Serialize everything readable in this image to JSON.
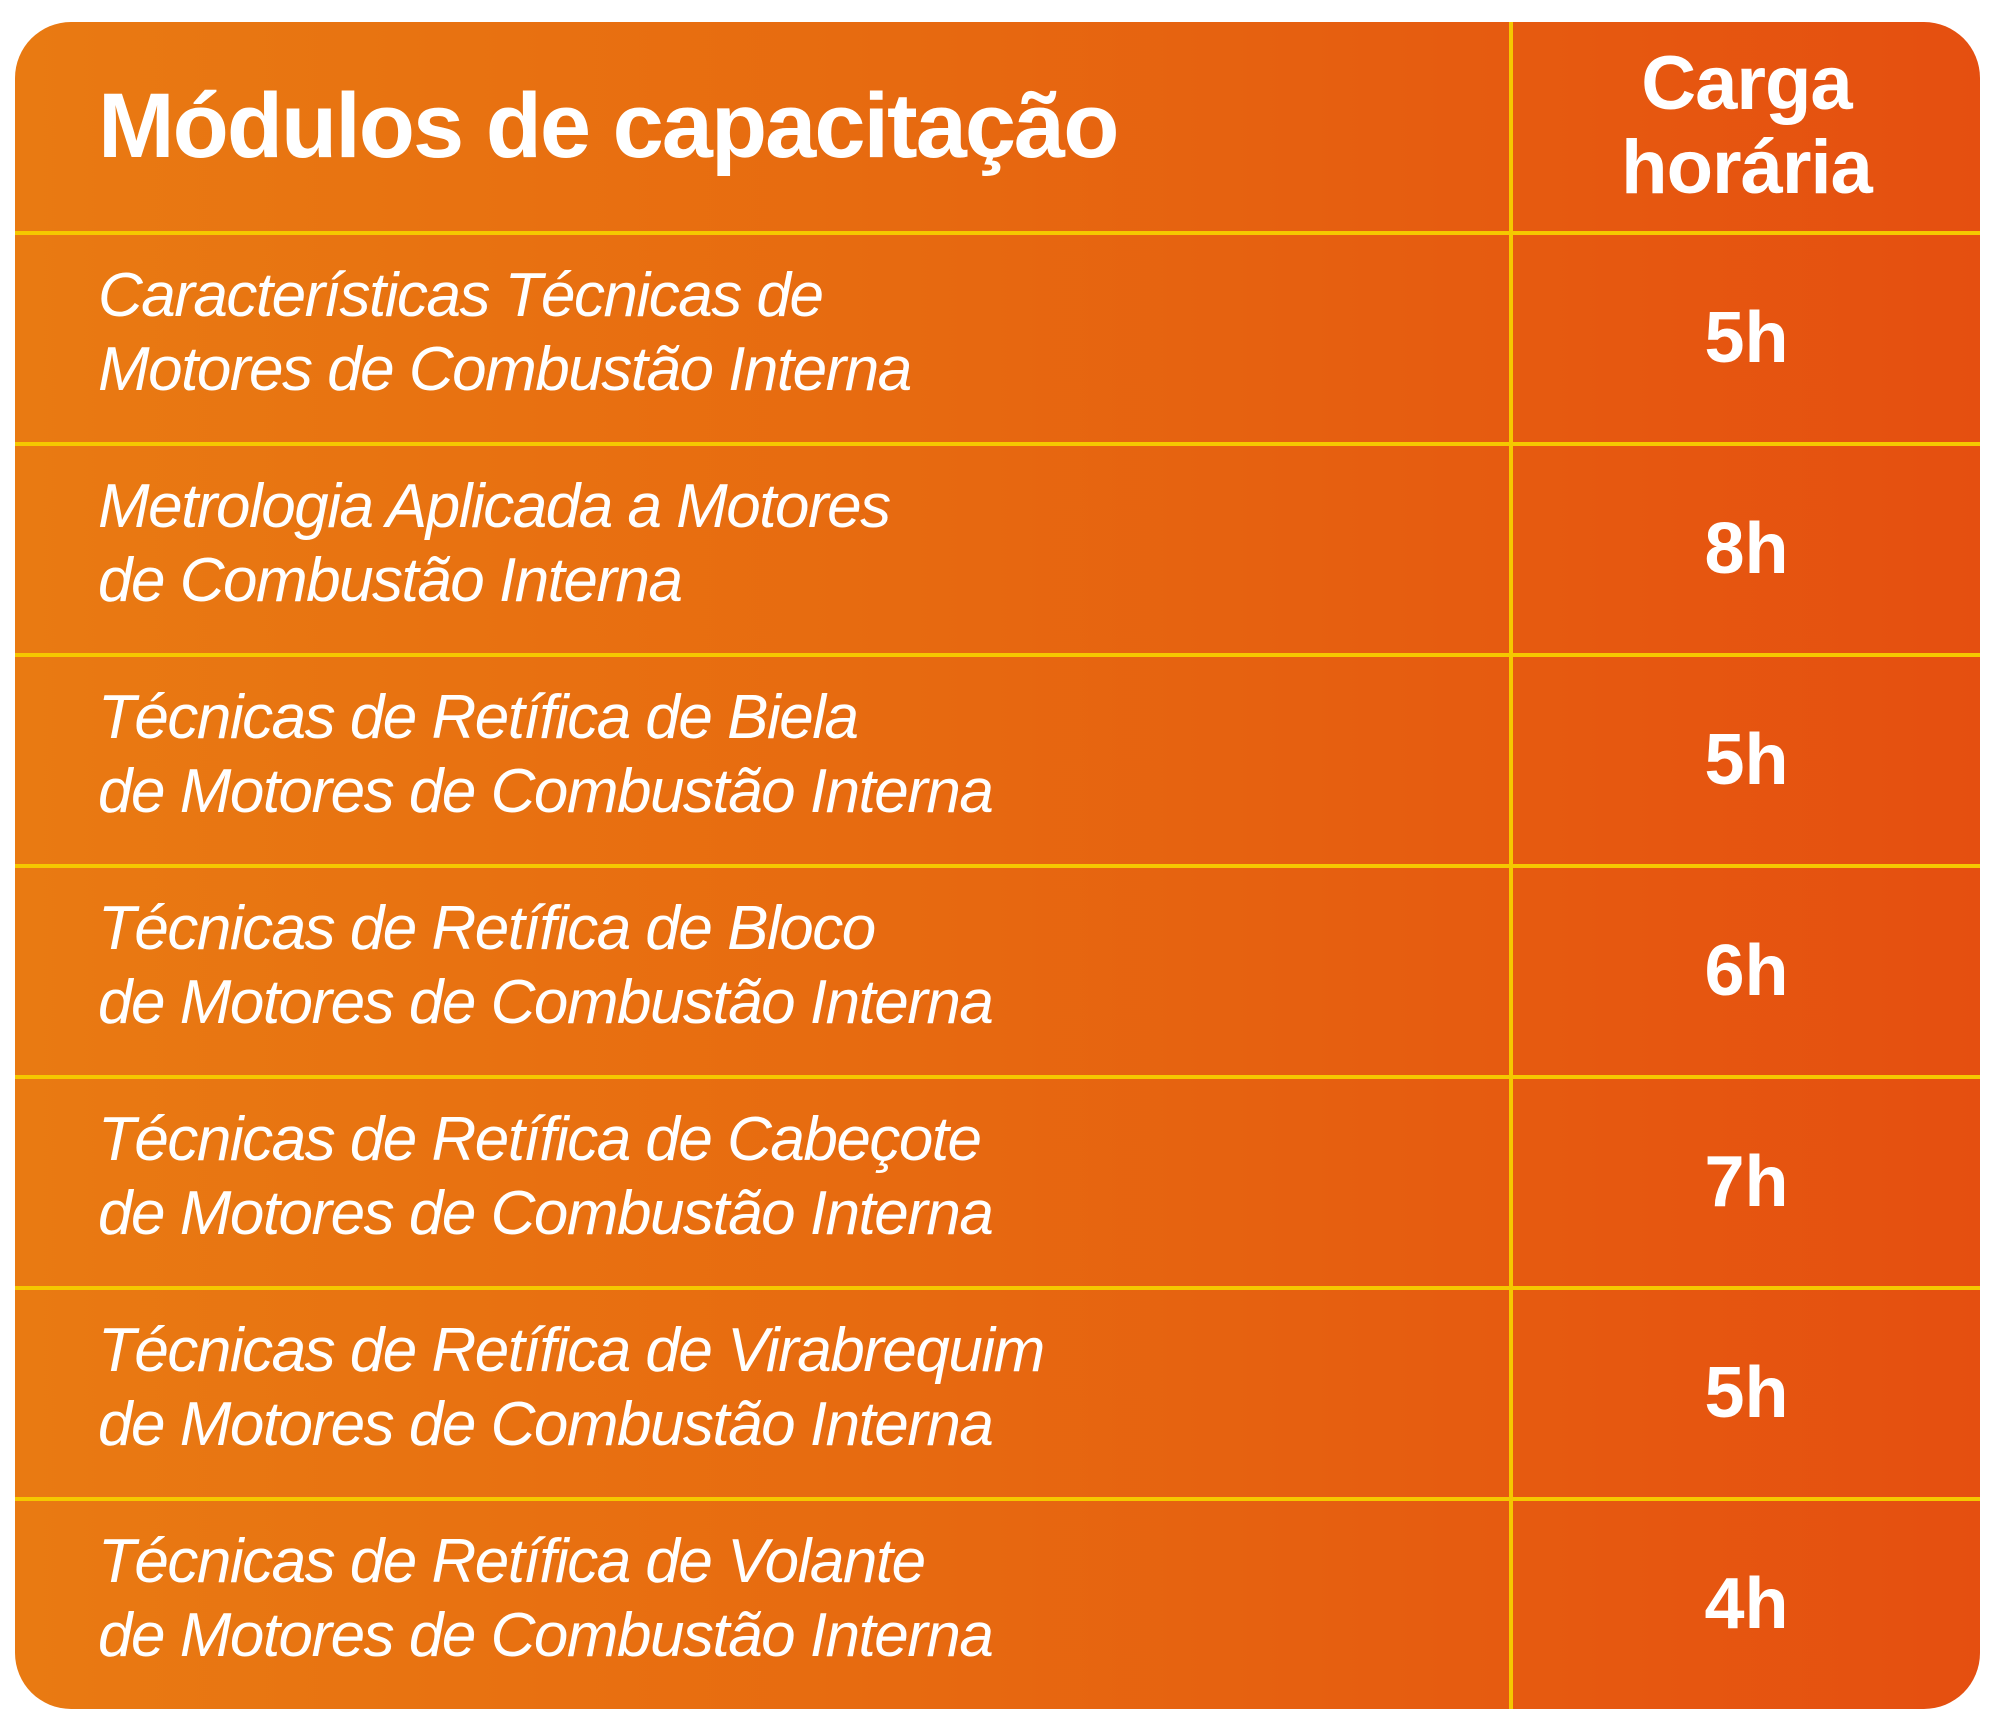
{
  "header": {
    "title": "Módulos de capacitação",
    "hours_label": "Carga horária"
  },
  "rows": [
    {
      "module": "Características Técnicas de\nMotores de Combustão Interna",
      "hours": "5h"
    },
    {
      "module": "Metrologia Aplicada a Motores\nde Combustão Interna",
      "hours": "8h"
    },
    {
      "module": "Técnicas de Retífica de Biela\nde Motores de Combustão Interna",
      "hours": "5h"
    },
    {
      "module": "Técnicas de Retífica de Bloco\nde Motores de Combustão Interna",
      "hours": "6h"
    },
    {
      "module": "Técnicas de Retífica de Cabeçote\nde Motores de Combustão Interna",
      "hours": "7h"
    },
    {
      "module": "Técnicas de Retífica de Virabrequim\nde Motores de Combustão Interna",
      "hours": "5h"
    },
    {
      "module": "Técnicas de Retífica de Volante\nde Motores de Combustão Interna",
      "hours": "4h"
    }
  ],
  "colors": {
    "gradient_start": "#E97A12",
    "gradient_end": "#E54F10",
    "divider": "#F5C800",
    "text": "#FFFFFF"
  }
}
